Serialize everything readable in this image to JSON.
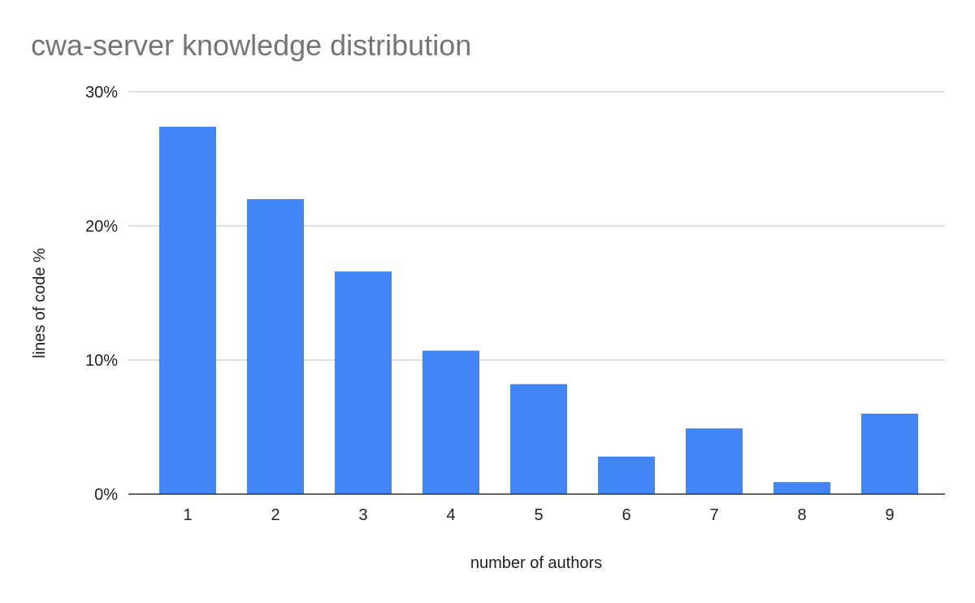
{
  "chart_data": {
    "type": "bar",
    "title": "cwa-server knowledge distribution",
    "xlabel": "number of authors",
    "ylabel": "lines of  code %",
    "categories": [
      "1",
      "2",
      "3",
      "4",
      "5",
      "6",
      "7",
      "8",
      "9"
    ],
    "series": [
      {
        "values": [
          27.4,
          22.0,
          16.6,
          10.7,
          8.2,
          2.8,
          4.9,
          0.9,
          6.0
        ],
        "color": "#4285f4"
      }
    ],
    "ylim": [
      0,
      30
    ],
    "yticks": [
      0,
      10,
      20,
      30
    ],
    "ytick_labels": [
      "0%",
      "10%",
      "20%",
      "30%"
    ],
    "grid": true,
    "legend": "none"
  }
}
